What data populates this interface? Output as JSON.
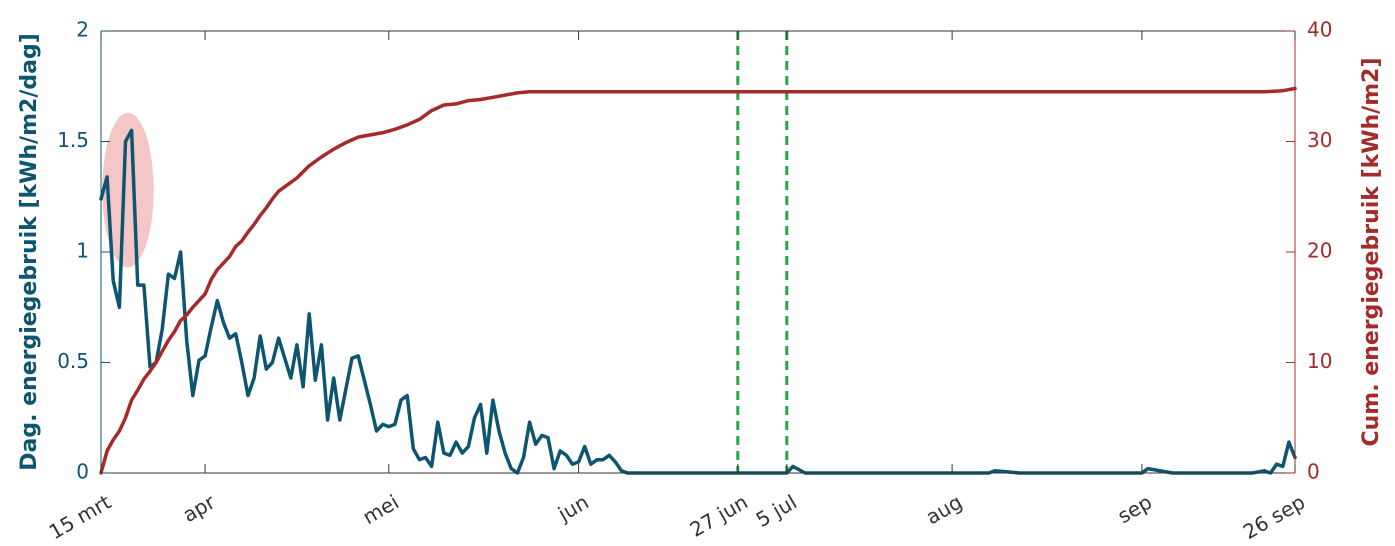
{
  "chart_data": {
    "type": "line",
    "x_unit": "days since 15 mrt",
    "xlim": [
      0,
      195
    ],
    "x_ticks": [
      {
        "x": 0,
        "label": "15 mrt"
      },
      {
        "x": 17,
        "label": "apr"
      },
      {
        "x": 47,
        "label": "mei"
      },
      {
        "x": 78,
        "label": "jun"
      },
      {
        "x": 104,
        "label": "27 jun"
      },
      {
        "x": 112,
        "label": "5 jul"
      },
      {
        "x": 139,
        "label": "aug"
      },
      {
        "x": 170,
        "label": "sep"
      },
      {
        "x": 195,
        "label": "26 sep"
      }
    ],
    "ylabel_left": "Dag. energiegebruik [kWh/m2/dag]",
    "ylim_left": [
      0,
      2
    ],
    "yticks_left": [
      0,
      0.5,
      1,
      1.5,
      2
    ],
    "ylabel_right": "Cum. energiegebruik [kWh/m2]",
    "ylim_right": [
      0,
      40
    ],
    "yticks_right": [
      0,
      10,
      20,
      30,
      40
    ],
    "vertical_markers": [
      {
        "x": 104,
        "color": "#22aa44",
        "style": "dashed"
      },
      {
        "x": 112,
        "color": "#22aa44",
        "style": "dashed"
      }
    ],
    "highlight": {
      "cx": 4.4,
      "cy": 1.28,
      "rx": 4.2,
      "ry": 0.35,
      "color": "#f4c6c6"
    },
    "series": [
      {
        "axis": "left",
        "color": "#0d5570",
        "x": [
          0,
          1,
          2,
          3,
          4,
          5,
          6,
          7,
          8,
          9,
          10,
          11,
          12,
          13,
          14,
          15,
          16,
          17,
          18,
          19,
          20,
          21,
          22,
          23,
          24,
          25,
          26,
          27,
          28,
          29,
          30,
          31,
          32,
          33,
          34,
          35,
          36,
          37,
          38,
          39,
          40,
          41,
          42,
          43,
          44,
          45,
          46,
          47,
          48,
          49,
          50,
          51,
          52,
          53,
          54,
          55,
          56,
          57,
          58,
          59,
          60,
          61,
          62,
          63,
          64,
          65,
          66,
          67,
          68,
          69,
          70,
          71,
          72,
          73,
          74,
          75,
          76,
          77,
          78,
          79,
          80,
          81,
          82,
          83,
          84,
          85,
          86,
          87,
          88,
          89,
          90,
          95,
          100,
          105,
          110,
          112,
          113,
          115,
          120,
          125,
          130,
          135,
          140,
          145,
          146,
          150,
          155,
          160,
          165,
          170,
          171,
          175,
          180,
          185,
          188,
          190,
          191,
          192,
          193,
          194,
          195
        ],
        "y": [
          1.24,
          1.34,
          0.87,
          0.75,
          1.5,
          1.55,
          0.85,
          0.85,
          0.48,
          0.5,
          0.65,
          0.9,
          0.88,
          1.0,
          0.6,
          0.35,
          0.51,
          0.53,
          0.66,
          0.78,
          0.68,
          0.61,
          0.63,
          0.5,
          0.35,
          0.43,
          0.62,
          0.47,
          0.5,
          0.61,
          0.52,
          0.43,
          0.58,
          0.39,
          0.72,
          0.42,
          0.58,
          0.24,
          0.43,
          0.24,
          0.38,
          0.52,
          0.53,
          0.42,
          0.31,
          0.19,
          0.22,
          0.21,
          0.22,
          0.33,
          0.35,
          0.11,
          0.06,
          0.07,
          0.03,
          0.23,
          0.09,
          0.08,
          0.14,
          0.09,
          0.12,
          0.25,
          0.31,
          0.09,
          0.33,
          0.19,
          0.09,
          0.02,
          0.0,
          0.07,
          0.23,
          0.13,
          0.17,
          0.16,
          0.02,
          0.1,
          0.08,
          0.04,
          0.05,
          0.12,
          0.04,
          0.06,
          0.06,
          0.08,
          0.05,
          0.01,
          0.0,
          0.0,
          0.0,
          0.0,
          0.0,
          0.0,
          0.0,
          0.0,
          0.0,
          0.0,
          0.03,
          0.0,
          0.0,
          0.0,
          0.0,
          0.0,
          0.0,
          0.0,
          0.01,
          0.0,
          0.0,
          0.0,
          0.0,
          0.0,
          0.02,
          0.0,
          0.0,
          0.0,
          0.0,
          0.01,
          0.0,
          0.04,
          0.03,
          0.14,
          0.07
        ]
      },
      {
        "axis": "right",
        "color": "#a52a2a",
        "x": [
          0,
          1,
          2,
          3,
          4,
          5,
          6,
          7,
          8,
          9,
          10,
          11,
          12,
          13,
          14,
          15,
          16,
          17,
          18,
          19,
          20,
          21,
          22,
          23,
          24,
          25,
          26,
          27,
          28,
          29,
          30,
          32,
          34,
          36,
          38,
          40,
          42,
          44,
          46,
          48,
          50,
          52,
          54,
          56,
          58,
          60,
          62,
          64,
          66,
          68,
          70,
          72,
          74,
          76,
          78,
          80,
          82,
          85,
          86,
          90,
          100,
          105,
          110,
          120,
          130,
          140,
          150,
          160,
          170,
          180,
          190,
          193,
          195
        ],
        "y": [
          0.0,
          2.0,
          3.0,
          3.8,
          5.0,
          6.6,
          7.5,
          8.5,
          9.2,
          10.0,
          11.0,
          12.0,
          12.8,
          13.8,
          14.3,
          15.0,
          15.6,
          16.2,
          17.5,
          18.4,
          19.0,
          19.6,
          20.5,
          21.0,
          21.8,
          22.5,
          23.3,
          24.0,
          24.8,
          25.5,
          25.9,
          26.7,
          27.8,
          28.6,
          29.3,
          29.9,
          30.4,
          30.6,
          30.8,
          31.1,
          31.5,
          32.0,
          32.8,
          33.3,
          33.4,
          33.7,
          33.8,
          34.0,
          34.2,
          34.4,
          34.5,
          34.5,
          34.5,
          34.5,
          34.5,
          34.5,
          34.5,
          34.5,
          34.5,
          34.5,
          34.5,
          34.5,
          34.5,
          34.5,
          34.5,
          34.5,
          34.5,
          34.5,
          34.5,
          34.5,
          34.5,
          34.6,
          34.8
        ]
      }
    ]
  }
}
